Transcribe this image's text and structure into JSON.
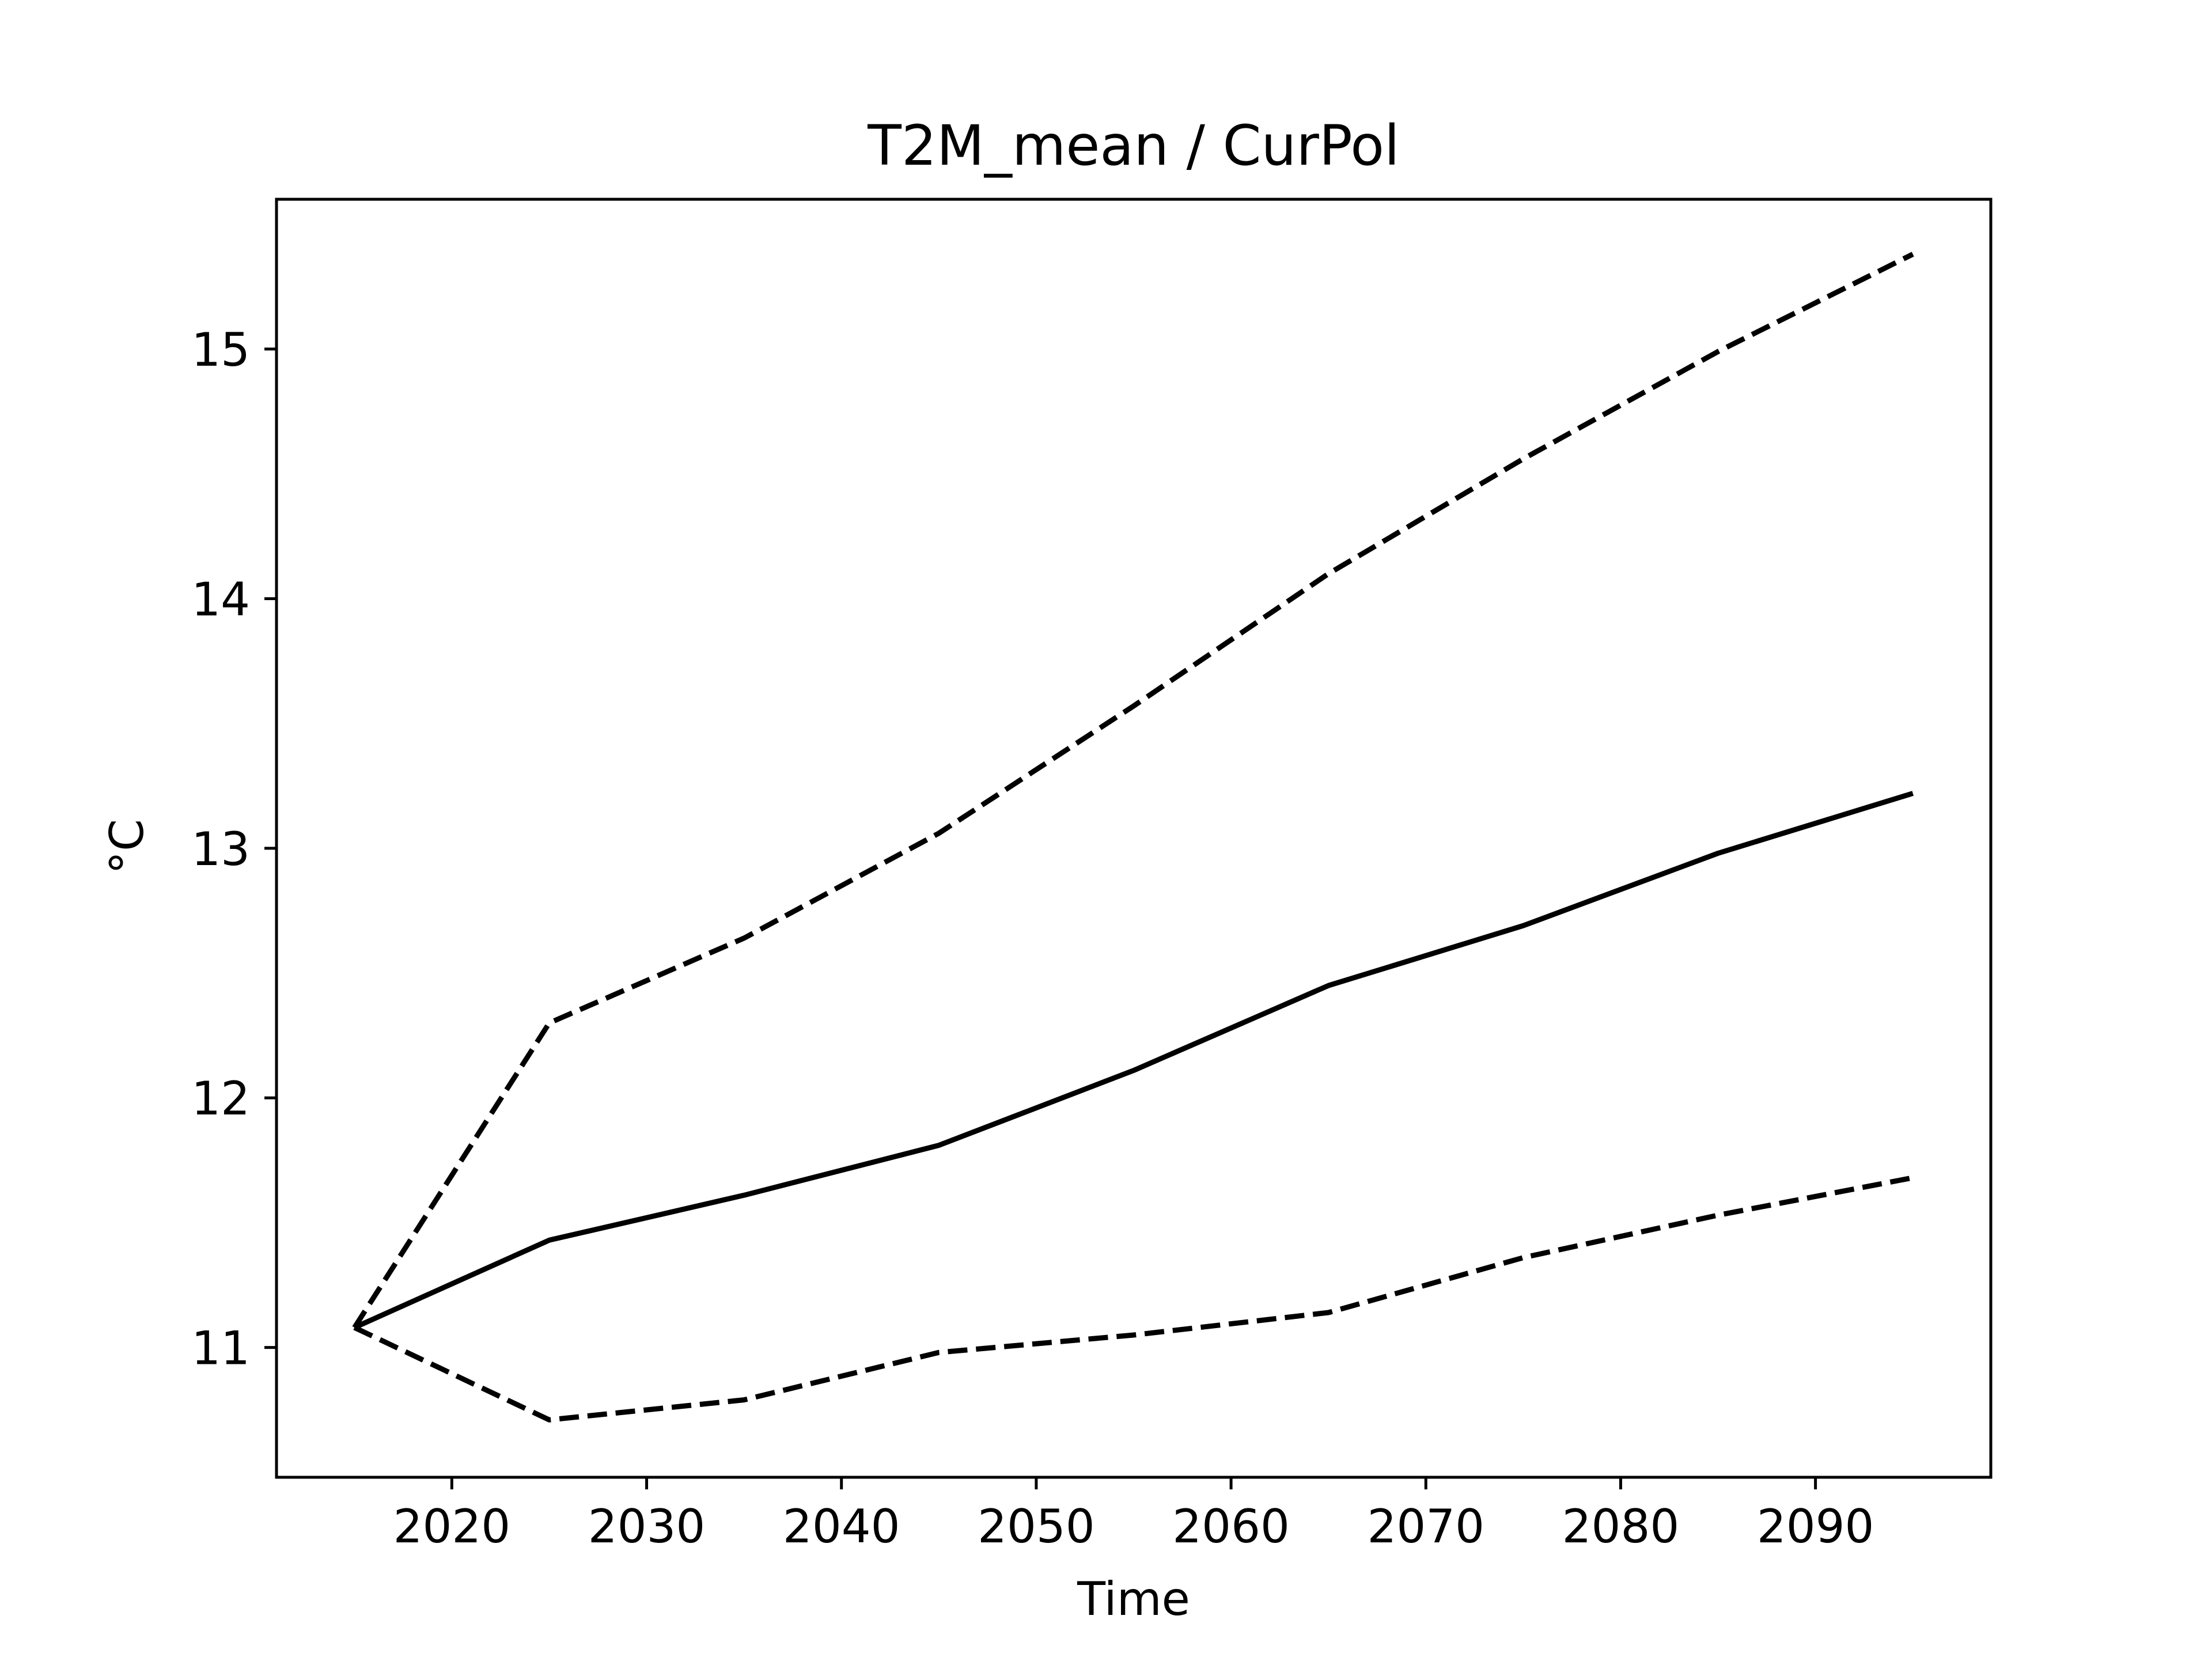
{
  "chart_data": {
    "type": "line",
    "title": "T2M_mean / CurPol",
    "xlabel": "Time",
    "ylabel": "°C",
    "xlim": [
      2011,
      2099
    ],
    "ylim": [
      10.48,
      15.6
    ],
    "x_ticks": [
      2020,
      2030,
      2040,
      2050,
      2060,
      2070,
      2080,
      2090
    ],
    "y_ticks": [
      11,
      12,
      13,
      14,
      15
    ],
    "grid": false,
    "legend": "none",
    "x": [
      2015,
      2025,
      2035,
      2045,
      2055,
      2065,
      2075,
      2085,
      2095
    ],
    "series": [
      {
        "style": "dashed",
        "color": "#000000",
        "values": [
          11.08,
          12.3,
          12.64,
          13.06,
          13.57,
          14.1,
          14.56,
          14.99,
          15.38
        ]
      },
      {
        "style": "solid",
        "color": "#000000",
        "values": [
          11.08,
          11.43,
          11.61,
          11.81,
          12.11,
          12.45,
          12.69,
          12.98,
          13.22
        ]
      },
      {
        "style": "dashed",
        "color": "#000000",
        "values": [
          11.08,
          10.71,
          10.79,
          10.98,
          11.05,
          11.14,
          11.36,
          11.53,
          11.68
        ]
      }
    ]
  }
}
